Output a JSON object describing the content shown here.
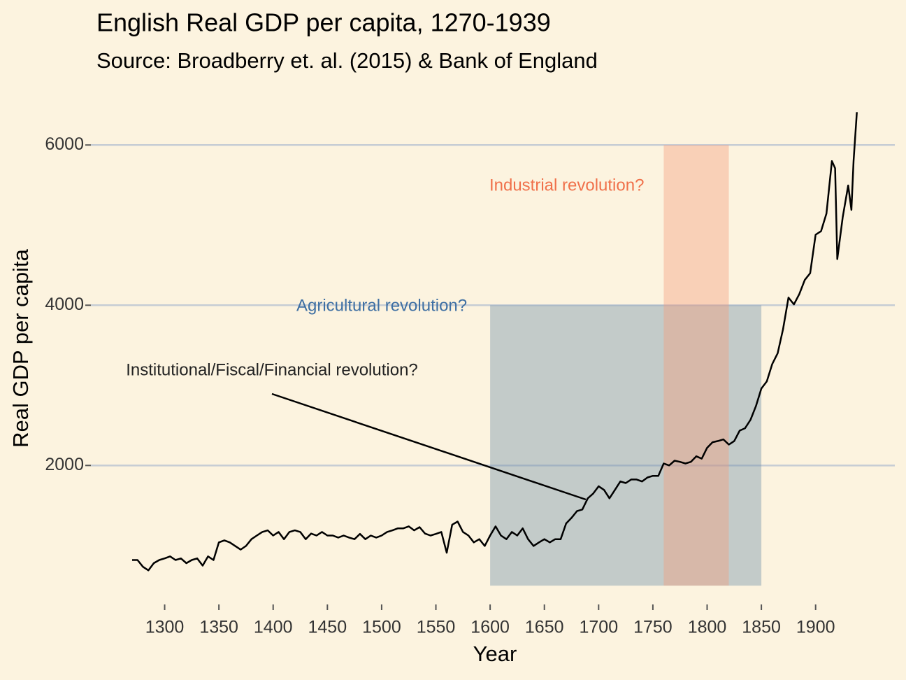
{
  "chart_data": {
    "type": "line",
    "title": "English Real GDP per capita, 1270-1939",
    "subtitle": "Source: Broadberry et. al. (2015) & Bank of England",
    "x_label": "Year",
    "y_label": "Real GDP per capita",
    "color": "#000000",
    "x": [
      1270,
      1275,
      1280,
      1285,
      1290,
      1295,
      1300,
      1305,
      1310,
      1315,
      1320,
      1325,
      1330,
      1335,
      1340,
      1345,
      1350,
      1355,
      1360,
      1365,
      1370,
      1375,
      1380,
      1385,
      1390,
      1395,
      1400,
      1405,
      1410,
      1415,
      1420,
      1425,
      1430,
      1435,
      1440,
      1445,
      1450,
      1455,
      1460,
      1465,
      1470,
      1475,
      1480,
      1485,
      1490,
      1495,
      1500,
      1505,
      1510,
      1515,
      1520,
      1525,
      1530,
      1535,
      1540,
      1545,
      1550,
      1555,
      1560,
      1565,
      1570,
      1575,
      1580,
      1585,
      1590,
      1595,
      1600,
      1605,
      1610,
      1615,
      1620,
      1625,
      1630,
      1635,
      1640,
      1645,
      1650,
      1655,
      1660,
      1665,
      1670,
      1675,
      1680,
      1685,
      1690,
      1695,
      1700,
      1705,
      1710,
      1715,
      1720,
      1725,
      1730,
      1735,
      1740,
      1745,
      1750,
      1755,
      1760,
      1765,
      1770,
      1775,
      1780,
      1785,
      1790,
      1795,
      1800,
      1805,
      1810,
      1815,
      1820,
      1825,
      1830,
      1835,
      1840,
      1845,
      1850,
      1855,
      1860,
      1865,
      1870,
      1875,
      1880,
      1885,
      1890,
      1895,
      1900,
      1905,
      1910,
      1915,
      1918,
      1920,
      1925,
      1930,
      1933,
      1935,
      1938
    ],
    "values": [
      820,
      820,
      735,
      690,
      780,
      820,
      840,
      865,
      820,
      840,
      780,
      820,
      840,
      750,
      865,
      820,
      1040,
      1065,
      1040,
      995,
      950,
      995,
      1080,
      1125,
      1170,
      1190,
      1125,
      1170,
      1080,
      1170,
      1190,
      1170,
      1080,
      1150,
      1125,
      1170,
      1125,
      1125,
      1100,
      1125,
      1100,
      1080,
      1145,
      1080,
      1125,
      1100,
      1125,
      1170,
      1190,
      1215,
      1215,
      1240,
      1190,
      1230,
      1150,
      1125,
      1145,
      1170,
      910,
      1260,
      1300,
      1170,
      1125,
      1040,
      1080,
      995,
      1125,
      1240,
      1125,
      1080,
      1170,
      1125,
      1215,
      1080,
      995,
      1040,
      1080,
      1040,
      1080,
      1080,
      1275,
      1345,
      1430,
      1450,
      1590,
      1650,
      1740,
      1695,
      1590,
      1695,
      1800,
      1780,
      1825,
      1825,
      1800,
      1850,
      1870,
      1870,
      2025,
      2000,
      2060,
      2045,
      2025,
      2045,
      2115,
      2085,
      2220,
      2290,
      2305,
      2325,
      2260,
      2305,
      2435,
      2465,
      2570,
      2740,
      2960,
      3050,
      3265,
      3400,
      3700,
      4095,
      4010,
      4140,
      4315,
      4400,
      4880,
      4925,
      5145,
      5800,
      5710,
      4575,
      5100,
      5495,
      5190,
      5800,
      6410
    ],
    "xlim": [
      1232,
      1973
    ],
    "ylim": [
      300,
      6500
    ],
    "xticks": [
      1300,
      1350,
      1400,
      1450,
      1500,
      1550,
      1600,
      1650,
      1700,
      1750,
      1800,
      1850,
      1900
    ],
    "yticks": [
      2000,
      4000,
      6000
    ],
    "grid": true,
    "regions": [
      {
        "label": "Agricultural revolution?",
        "x": [
          1600,
          1850
        ],
        "y": [
          500,
          4000
        ],
        "color": "#6f8fa8",
        "label_color": "#3e6fa3"
      },
      {
        "label": "Industrial revolution?",
        "x": [
          1760,
          1820
        ],
        "y": [
          500,
          6000
        ],
        "color": "#f59b7a",
        "label_color": "#f0704a"
      }
    ],
    "annotation": "Institutional/Fiscal/Financial revolution?"
  }
}
